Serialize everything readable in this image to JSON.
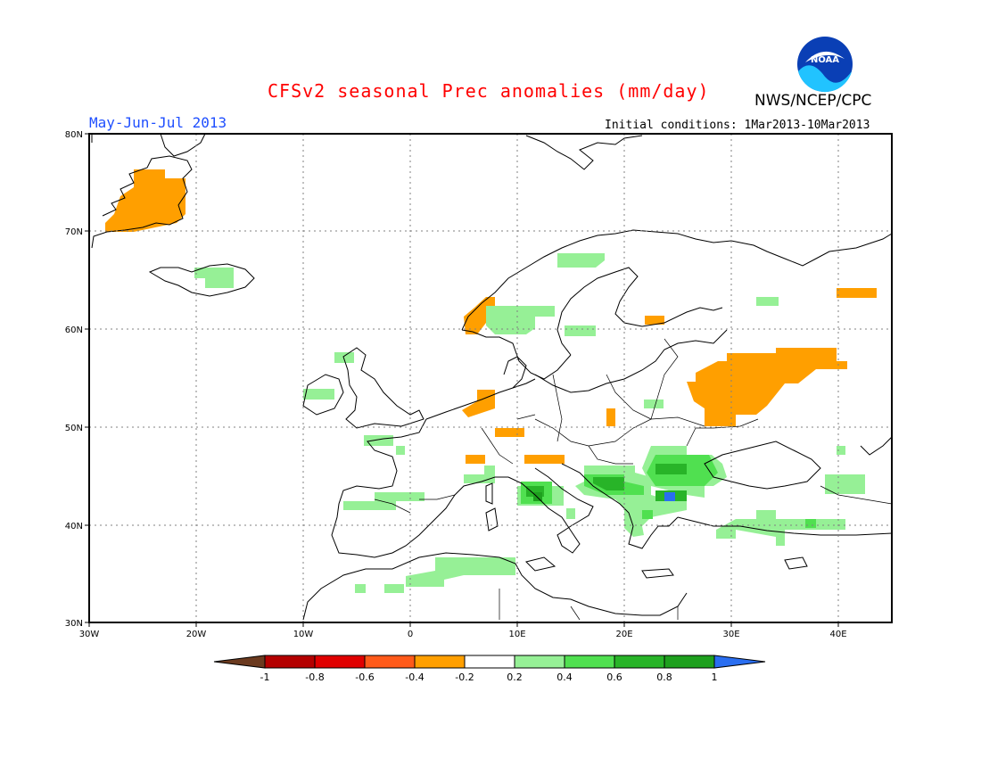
{
  "title": "CFSv2 seasonal Prec anomalies (mm/day)",
  "agency": "NWS/NCEP/CPC",
  "logo_text": "NOAA",
  "period": "May-Jun-Jul 2013",
  "initial_conditions": "Initial conditions: 1Mar2013-10Mar2013",
  "map": {
    "lon_range": [
      -30,
      45
    ],
    "lat_range": [
      30,
      80
    ],
    "gridlines": "dotted",
    "lon_ticks": [
      "30W",
      "20W",
      "10W",
      "0",
      "10E",
      "20E",
      "30E",
      "40E"
    ],
    "lat_ticks": [
      "80N",
      "70N",
      "60N",
      "50N",
      "40N",
      "30N"
    ]
  },
  "colorbar": {
    "labels": [
      "-1",
      "-0.8",
      "-0.6",
      "-0.4",
      "-0.2",
      "0.2",
      "0.4",
      "0.6",
      "0.8",
      "1"
    ],
    "colors": [
      "#6b3a1f",
      "#b40000",
      "#e00000",
      "#ff5a1a",
      "#ff9f00",
      "#ffffff",
      "#96f096",
      "#50e050",
      "#28b428",
      "#1ea01e",
      "#2a6ef0"
    ]
  },
  "colors": {
    "neg_light": "#ff9f00",
    "pos_light": "#96f096",
    "pos_mid": "#50e050",
    "pos_dark": "#28b428",
    "pos_max": "#2a6ef0"
  }
}
